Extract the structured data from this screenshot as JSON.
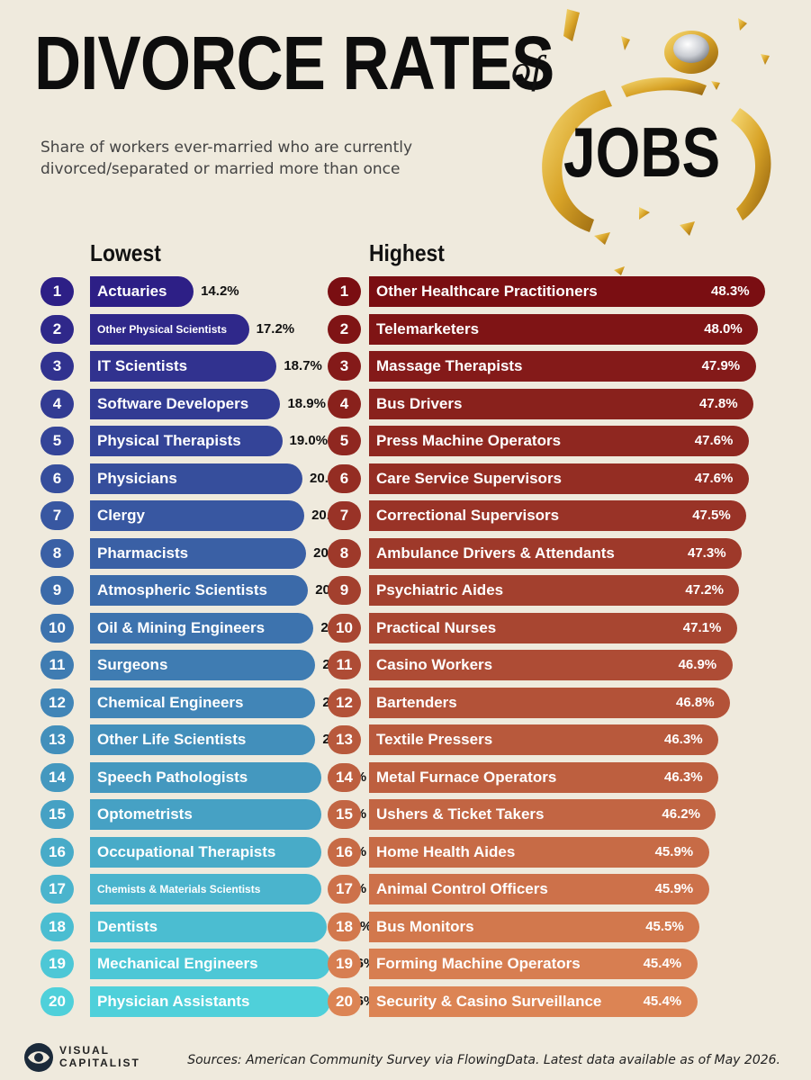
{
  "header": {
    "title": "DIVORCE RATES",
    "title_of": "of",
    "title_jobs": "JOBS",
    "subtitle": "Share of workers ever-married who are currently divorced/separated or married more than once"
  },
  "chart_data": {
    "type": "bar",
    "title": "DIVORCE RATES of JOBS",
    "subtitle": "Share of workers ever-married who are currently divorced/separated or married more than once",
    "unit": "%",
    "panels": [
      {
        "name": "Lowest",
        "color_from": "#2d1f86",
        "color_to": "#4fd0da",
        "ranks": [
          "1",
          "2",
          "3",
          "4",
          "5",
          "6",
          "7",
          "8",
          "9",
          "10",
          "11",
          "12",
          "13",
          "14",
          "15",
          "16",
          "17",
          "18",
          "19",
          "20"
        ],
        "categories": [
          "Actuaries",
          "Other Physical Scientists",
          "IT Scientists",
          "Software Developers",
          "Physical Therapists",
          "Physicians",
          "Clergy",
          "Pharmacists",
          "Atmospheric Scientists",
          "Oil & Mining Engineers",
          "Surgeons",
          "Chemical Engineers",
          "Other Life Scientists",
          "Speech Pathologists",
          "Optometrists",
          "Occupational Therapists",
          "Chemists & Materials Scientists",
          "Dentists",
          "Mechanical Engineers",
          "Physician Assistants"
        ],
        "values": [
          14.2,
          17.2,
          18.7,
          18.9,
          19.0,
          20.1,
          20.2,
          20.3,
          20.4,
          20.7,
          20.8,
          20.8,
          20.8,
          21.1,
          21.1,
          21.1,
          21.1,
          21.4,
          21.6,
          21.6
        ],
        "labels": [
          "14.2%",
          "17.2%",
          "18.7%",
          "18.9%",
          "19.0%",
          "20.1%",
          "20.2%",
          "20.3%",
          "20.4%",
          "20.7%",
          "20.8%",
          "20.8%",
          "20.8%",
          "21.1%",
          "21.1%",
          "21.1%",
          "21.1%",
          "21.4%",
          "21.6%",
          "21.6%"
        ]
      },
      {
        "name": "Highest",
        "color_from": "#7a0e12",
        "color_to": "#dc8454",
        "ranks": [
          "1",
          "2",
          "3",
          "4",
          "5",
          "6",
          "7",
          "8",
          "9",
          "10",
          "11",
          "12",
          "13",
          "14",
          "15",
          "16",
          "17",
          "18",
          "19",
          "20"
        ],
        "categories": [
          "Other Healthcare Practitioners",
          "Telemarketers",
          "Massage Therapists",
          "Bus Drivers",
          "Press Machine Operators",
          "Care Service Supervisors",
          "Correctional Supervisors",
          "Ambulance Drivers & Attendants",
          "Psychiatric Aides",
          "Practical Nurses",
          "Casino Workers",
          "Bartenders",
          "Textile Pressers",
          "Metal Furnace Operators",
          "Ushers & Ticket Takers",
          "Home Health Aides",
          "Animal Control Officers",
          "Bus Monitors",
          "Forming Machine Operators",
          "Security & Casino Surveillance"
        ],
        "values": [
          48.3,
          48.0,
          47.9,
          47.8,
          47.6,
          47.6,
          47.5,
          47.3,
          47.2,
          47.1,
          46.9,
          46.8,
          46.3,
          46.3,
          46.2,
          45.9,
          45.9,
          45.5,
          45.4,
          45.4
        ],
        "labels": [
          "48.3%",
          "48.0%",
          "47.9%",
          "47.8%",
          "47.6%",
          "47.6%",
          "47.5%",
          "47.3%",
          "47.2%",
          "47.1%",
          "46.9%",
          "46.8%",
          "46.3%",
          "46.3%",
          "46.2%",
          "45.9%",
          "45.9%",
          "45.5%",
          "45.4%",
          "45.4%"
        ]
      }
    ]
  },
  "footer": {
    "brand_line1": "VISUAL",
    "brand_line2": "CAPITALIST",
    "source": "Sources: American Community Survey via FlowingData. Latest data available as of May 2026."
  }
}
